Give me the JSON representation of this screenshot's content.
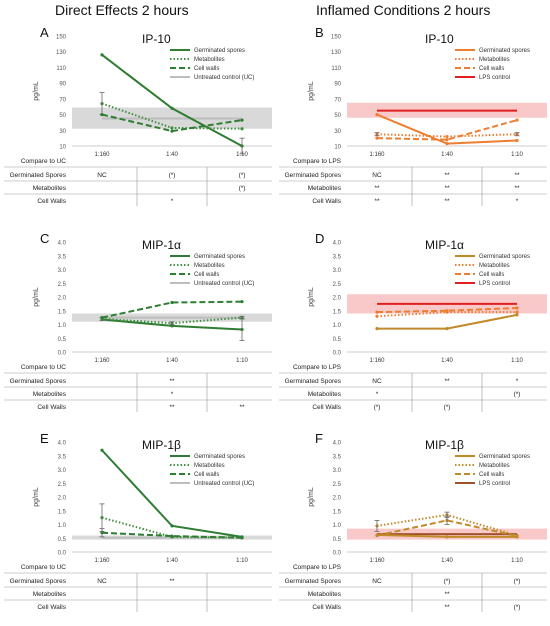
{
  "column_titles": {
    "left": "Direct Effects 2 hours",
    "right": "Inflamed Conditions 2 hours"
  },
  "colors": {
    "green_dark": "#2e7d32",
    "green_mid": "#3f8e3f",
    "orange": "#ed7d31",
    "red": "#e01f1f",
    "gold": "#c08a2a",
    "brown": "#a0522d",
    "uc_band": "#d9d9d9",
    "lps_band": "#f9c9c9",
    "uc_line": "#bdbdbd"
  },
  "chart_data": [
    {
      "panel": "A",
      "type": "line",
      "title": "IP-10",
      "ylabel": "pg/mL",
      "x": [
        "1:160",
        "1:40",
        "1:10"
      ],
      "ylim": [
        10,
        150
      ],
      "yticks": [
        10,
        30,
        50,
        70,
        90,
        110,
        130,
        150
      ],
      "band": {
        "low": 32,
        "high": 59,
        "color": "#d9d9d9"
      },
      "reference": {
        "name": "Untreated control (UC)",
        "value": 45,
        "color": "#bdbdbd"
      },
      "series": [
        {
          "name": "Germinated spores",
          "style": "solid",
          "color": "#2e7d32",
          "values": [
            126,
            58,
            10
          ],
          "errors": [
            0,
            0,
            10
          ]
        },
        {
          "name": "Metabolites",
          "style": "dotted",
          "color": "#3f8e3f",
          "values": [
            64,
            33,
            32
          ],
          "errors": [
            14,
            0,
            0
          ]
        },
        {
          "name": "Cell walls",
          "style": "dashed",
          "color": "#2e7d32",
          "values": [
            50,
            29,
            43
          ],
          "errors": [
            0,
            0,
            0
          ]
        }
      ],
      "stats": {
        "header": "Compare to UC",
        "rows": [
          {
            "label": "Germinated Spores",
            "values": [
              "NC",
              "(*)",
              "(*)"
            ]
          },
          {
            "label": "Metabolites",
            "values": [
              "",
              "",
              "(*)"
            ]
          },
          {
            "label": "Cell Walls",
            "values": [
              "",
              "*",
              ""
            ]
          }
        ]
      }
    },
    {
      "panel": "B",
      "type": "line",
      "title": "IP-10",
      "ylabel": "pg/mL",
      "x": [
        "1:160",
        "1:40",
        "1:10"
      ],
      "ylim": [
        10,
        150
      ],
      "yticks": [
        10,
        30,
        50,
        70,
        90,
        110,
        130,
        150
      ],
      "band": {
        "low": 46,
        "high": 65,
        "color": "#f9c9c9"
      },
      "reference": {
        "name": "LPS control",
        "value": 55,
        "color": "#e01f1f"
      },
      "series": [
        {
          "name": "Germinated spores",
          "style": "solid",
          "color": "#ed7d31",
          "values": [
            50,
            13,
            17
          ],
          "errors": [
            0,
            0,
            0
          ]
        },
        {
          "name": "Metabolites",
          "style": "dotted",
          "color": "#ed7d31",
          "values": [
            25,
            22,
            25
          ],
          "errors": [
            2,
            0,
            2
          ]
        },
        {
          "name": "Cell walls",
          "style": "dashed",
          "color": "#ed7d31",
          "values": [
            20,
            18,
            43
          ],
          "errors": [
            0,
            0,
            0
          ]
        }
      ],
      "stats": {
        "header": "Compare to LPS",
        "rows": [
          {
            "label": "Germinated Spores",
            "values": [
              "NC",
              "**",
              "**"
            ]
          },
          {
            "label": "Metabolites",
            "values": [
              "**",
              "**",
              "**"
            ]
          },
          {
            "label": "Cell Walls",
            "values": [
              "**",
              "**",
              "*"
            ]
          }
        ]
      }
    },
    {
      "panel": "C",
      "type": "line",
      "title": "MIP-1α",
      "ylabel": "pg/mL",
      "x": [
        "1:160",
        "1:40",
        "1:10"
      ],
      "ylim": [
        0,
        4.0
      ],
      "yticks": [
        0.0,
        0.5,
        1.0,
        1.5,
        2.0,
        2.5,
        3.0,
        3.5,
        4.0
      ],
      "band": {
        "low": 1.1,
        "high": 1.4,
        "color": "#d9d9d9"
      },
      "reference": {
        "name": "Untreated control (UC)",
        "value": 1.25,
        "color": "#bdbdbd"
      },
      "series": [
        {
          "name": "Germinated spores",
          "style": "solid",
          "color": "#2e7d32",
          "values": [
            1.18,
            0.95,
            0.82
          ],
          "errors": [
            0,
            0,
            0.4
          ]
        },
        {
          "name": "Metabolites",
          "style": "dotted",
          "color": "#3f8e3f",
          "values": [
            1.2,
            1.05,
            1.25
          ],
          "errors": [
            0.05,
            0.05,
            0.05
          ]
        },
        {
          "name": "Cell walls",
          "style": "dashed",
          "color": "#2e7d32",
          "values": [
            1.25,
            1.8,
            1.83
          ],
          "errors": [
            0,
            0,
            0
          ]
        }
      ],
      "stats": {
        "header": "Compare to UC",
        "rows": [
          {
            "label": "Germinated Spores",
            "values": [
              "",
              "**",
              ""
            ]
          },
          {
            "label": "Metabolites",
            "values": [
              "",
              "*",
              ""
            ]
          },
          {
            "label": "Cell Walls",
            "values": [
              "",
              "**",
              "**"
            ]
          }
        ]
      }
    },
    {
      "panel": "D",
      "type": "line",
      "title": "MIP-1α",
      "ylabel": "pg/mL",
      "x": [
        "1:160",
        "1:40",
        "1:10"
      ],
      "ylim": [
        0,
        4.0
      ],
      "yticks": [
        0.0,
        0.5,
        1.0,
        1.5,
        2.0,
        2.5,
        3.0,
        3.5,
        4.0
      ],
      "band": {
        "low": 1.4,
        "high": 2.1,
        "color": "#f9c9c9"
      },
      "reference": {
        "name": "LPS control",
        "value": 1.75,
        "color": "#e01f1f"
      },
      "series": [
        {
          "name": "Germinated spores",
          "style": "solid",
          "color": "#c08a2a",
          "values": [
            0.85,
            0.85,
            1.35
          ],
          "errors": [
            0,
            0,
            0
          ]
        },
        {
          "name": "Metabolites",
          "style": "dotted",
          "color": "#ed7d31",
          "values": [
            1.3,
            1.45,
            1.45
          ],
          "errors": [
            0,
            0,
            0
          ]
        },
        {
          "name": "Cell walls",
          "style": "dashed",
          "color": "#ed7d31",
          "values": [
            1.45,
            1.5,
            1.6
          ],
          "errors": [
            0,
            0,
            0
          ]
        }
      ],
      "stats": {
        "header": "Compare to LPS",
        "rows": [
          {
            "label": "Germinated Spores",
            "values": [
              "NC",
              "**",
              "*"
            ]
          },
          {
            "label": "Metabolites",
            "values": [
              "*",
              "",
              "(*)"
            ]
          },
          {
            "label": "Cell Walls",
            "values": [
              "(*)",
              "(*)",
              ""
            ]
          }
        ]
      }
    },
    {
      "panel": "E",
      "type": "line",
      "title": "MIP-1β",
      "ylabel": "pg/mL",
      "x": [
        "1:160",
        "1:40",
        "1:10"
      ],
      "ylim": [
        0,
        4.0
      ],
      "yticks": [
        0.0,
        0.5,
        1.0,
        1.5,
        2.0,
        2.5,
        3.0,
        3.5,
        4.0
      ],
      "band": {
        "low": 0.45,
        "high": 0.6,
        "color": "#d9d9d9"
      },
      "reference": {
        "name": "Untreated control (UC)",
        "value": 0.52,
        "color": "#bdbdbd"
      },
      "series": [
        {
          "name": "Germinated spores",
          "style": "solid",
          "color": "#2e7d32",
          "values": [
            3.7,
            0.95,
            0.55
          ],
          "errors": [
            0,
            0,
            0
          ]
        },
        {
          "name": "Metabolites",
          "style": "dotted",
          "color": "#3f8e3f",
          "values": [
            1.25,
            0.55,
            0.52
          ],
          "errors": [
            0.5,
            0,
            0
          ]
        },
        {
          "name": "Cell walls",
          "style": "dashed",
          "color": "#2e7d32",
          "values": [
            0.7,
            0.58,
            0.52
          ],
          "errors": [
            0.15,
            0,
            0
          ]
        }
      ],
      "stats": {
        "header": "Compare to UC",
        "rows": [
          {
            "label": "Germinated Spores",
            "values": [
              "NC",
              "**",
              ""
            ]
          },
          {
            "label": "Metabolites",
            "values": [
              "",
              "",
              ""
            ]
          },
          {
            "label": "Cell Walls",
            "values": [
              "",
              "",
              ""
            ]
          }
        ]
      }
    },
    {
      "panel": "F",
      "type": "line",
      "title": "MIP-1β",
      "ylabel": "pg/mL",
      "x": [
        "1:160",
        "1:40",
        "1:10"
      ],
      "ylim": [
        0,
        4.0
      ],
      "yticks": [
        0.0,
        0.5,
        1.0,
        1.5,
        2.0,
        2.5,
        3.0,
        3.5,
        4.0
      ],
      "band": {
        "low": 0.45,
        "high": 0.85,
        "color": "#f9c9c9"
      },
      "reference": {
        "name": "LPS control",
        "value": 0.65,
        "color": "#a0522d"
      },
      "series": [
        {
          "name": "Germinated spores",
          "style": "solid",
          "color": "#c08a2a",
          "values": [
            0.62,
            0.55,
            0.55
          ],
          "errors": [
            0,
            0,
            0
          ]
        },
        {
          "name": "Metabolites",
          "style": "dotted",
          "color": "#c08a2a",
          "values": [
            0.95,
            1.35,
            0.6
          ],
          "errors": [
            0.2,
            0.1,
            0
          ]
        },
        {
          "name": "Cell walls",
          "style": "dashed",
          "color": "#c08a2a",
          "values": [
            0.6,
            1.15,
            0.58
          ],
          "errors": [
            0,
            0.15,
            0
          ]
        }
      ],
      "stats": {
        "header": "Compare to LPS",
        "rows": [
          {
            "label": "Germinated Spores",
            "values": [
              "NC",
              "(*)",
              "(*)"
            ]
          },
          {
            "label": "Metabolites",
            "values": [
              "",
              "**",
              ""
            ]
          },
          {
            "label": "Cell Walls",
            "values": [
              "",
              "**",
              "(*)"
            ]
          }
        ]
      }
    }
  ]
}
